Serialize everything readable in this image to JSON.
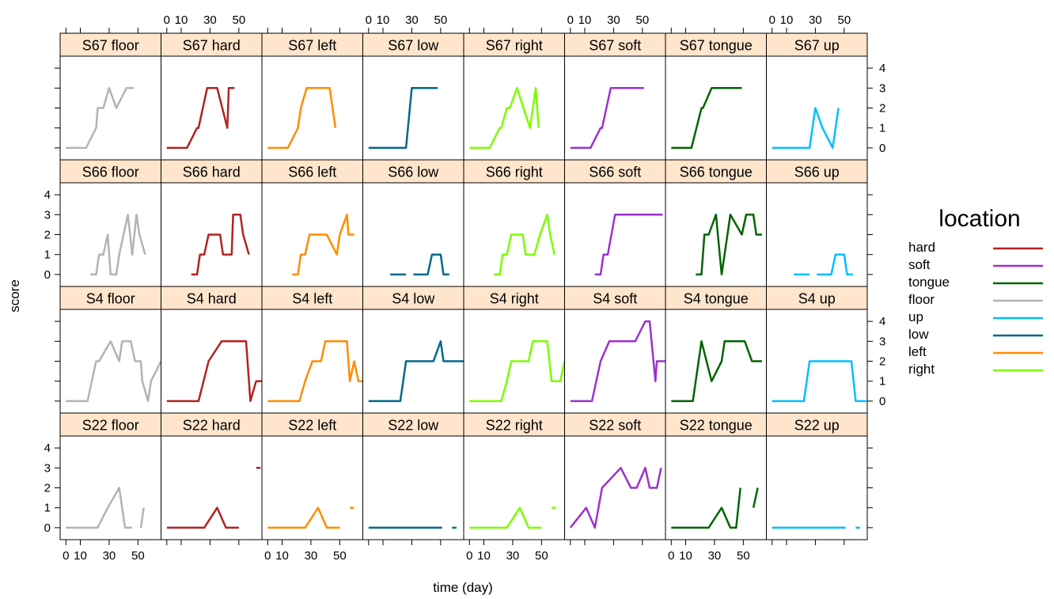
{
  "chart_data": {
    "type": "line",
    "xlabel": "time (day)",
    "ylabel": "score",
    "xlim": [
      -4,
      66
    ],
    "ylim": [
      -0.6,
      4.6
    ],
    "x_ticks": [
      0,
      10,
      30,
      50
    ],
    "y_ticks": [
      0,
      1,
      2,
      3,
      4
    ],
    "colors": {
      "hard": "#b22222",
      "soft": "#9a32cd",
      "tongue": "#006400",
      "floor": "#b3b3b3",
      "up": "#00bfff",
      "low": "#00688b",
      "left": "#ff8c00",
      "right": "#7cfc00"
    },
    "legend": {
      "title": "location",
      "entries": [
        "hard",
        "soft",
        "tongue",
        "floor",
        "up",
        "low",
        "left",
        "right"
      ]
    },
    "subjects": [
      "S67",
      "S66",
      "S4",
      "S22"
    ],
    "locations": [
      "floor",
      "hard",
      "left",
      "low",
      "right",
      "soft",
      "tongue",
      "up"
    ],
    "panels": {
      "S67": {
        "floor": [
          [
            0,
            0
          ],
          [
            14,
            0
          ],
          [
            21,
            1
          ],
          [
            22,
            2
          ],
          [
            26,
            2
          ],
          [
            30,
            3
          ],
          [
            35,
            2
          ],
          [
            42,
            3
          ],
          [
            47,
            3
          ]
        ],
        "hard": [
          [
            0,
            0
          ],
          [
            14,
            0
          ],
          [
            21,
            1
          ],
          [
            22,
            1
          ],
          [
            28,
            3
          ],
          [
            35,
            3
          ],
          [
            42,
            1
          ],
          [
            43,
            3
          ],
          [
            47,
            3
          ]
        ],
        "left": [
          [
            0,
            0
          ],
          [
            14,
            0
          ],
          [
            21,
            1
          ],
          [
            23,
            2
          ],
          [
            27,
            3
          ],
          [
            43,
            3
          ],
          [
            47,
            1
          ]
        ],
        "low": [
          [
            0,
            0
          ],
          [
            26,
            0
          ],
          [
            30,
            3
          ],
          [
            48,
            3
          ]
        ],
        "right": [
          [
            0,
            0
          ],
          [
            14,
            0
          ],
          [
            21,
            1
          ],
          [
            22,
            1
          ],
          [
            26,
            2
          ],
          [
            28,
            2
          ],
          [
            33,
            3
          ],
          [
            42,
            1
          ],
          [
            46,
            3
          ],
          [
            48,
            1
          ]
        ],
        "soft": [
          [
            0,
            0
          ],
          [
            14,
            0
          ],
          [
            21,
            1
          ],
          [
            22,
            1
          ],
          [
            28,
            3
          ],
          [
            51,
            3
          ]
        ],
        "tongue": [
          [
            0,
            0
          ],
          [
            14,
            0
          ],
          [
            21,
            2
          ],
          [
            22,
            2
          ],
          [
            28,
            3
          ],
          [
            49,
            3
          ]
        ],
        "up": [
          [
            0,
            0
          ],
          [
            26,
            0
          ],
          [
            30,
            2
          ],
          [
            35,
            1
          ],
          [
            42,
            0
          ],
          [
            46,
            2
          ]
        ]
      },
      "S66": {
        "floor": [
          [
            17,
            0
          ],
          [
            21,
            0
          ],
          [
            23,
            1
          ],
          [
            26,
            1
          ],
          [
            29,
            2
          ],
          [
            31,
            0
          ],
          [
            35,
            0
          ],
          [
            37,
            1
          ],
          [
            43,
            3
          ],
          [
            46,
            1
          ],
          [
            49,
            3
          ],
          [
            51,
            2
          ],
          [
            55,
            1
          ]
        ],
        "hard": [
          [
            17,
            0
          ],
          [
            21,
            0
          ],
          [
            23,
            1
          ],
          [
            26,
            1
          ],
          [
            29,
            2
          ],
          [
            37,
            2
          ],
          [
            39,
            1
          ],
          [
            45,
            1
          ],
          [
            46,
            3
          ],
          [
            51,
            3
          ],
          [
            53,
            2
          ],
          [
            57,
            1
          ]
        ],
        "left": [
          [
            17,
            0
          ],
          [
            21,
            0
          ],
          [
            23,
            1
          ],
          [
            26,
            1
          ],
          [
            29,
            2
          ],
          [
            41,
            2
          ],
          [
            48,
            1
          ],
          [
            50,
            2
          ],
          [
            55,
            3
          ],
          [
            56,
            2
          ],
          [
            60,
            2
          ]
        ],
        "low": [
          [
            15,
            0
          ],
          [
            26,
            0
          ],
          [
            null,
            null
          ],
          [
            31,
            0
          ],
          [
            41,
            0
          ],
          [
            44,
            1
          ],
          [
            50,
            1
          ],
          [
            52,
            0
          ],
          [
            56,
            0
          ]
        ],
        "right": [
          [
            17,
            0
          ],
          [
            21,
            0
          ],
          [
            23,
            1
          ],
          [
            26,
            1
          ],
          [
            29,
            2
          ],
          [
            37,
            2
          ],
          [
            39,
            1
          ],
          [
            45,
            1
          ],
          [
            49,
            2
          ],
          [
            54,
            3
          ],
          [
            56,
            2
          ],
          [
            59,
            1
          ]
        ],
        "soft": [
          [
            17,
            0
          ],
          [
            21,
            0
          ],
          [
            23,
            1
          ],
          [
            26,
            1
          ],
          [
            31,
            3
          ],
          [
            64,
            3
          ]
        ],
        "tongue": [
          [
            17,
            0
          ],
          [
            21,
            0
          ],
          [
            23,
            2
          ],
          [
            26,
            2
          ],
          [
            31,
            3
          ],
          [
            35,
            0
          ],
          [
            41,
            3
          ],
          [
            49,
            2
          ],
          [
            52,
            3
          ],
          [
            57,
            3
          ],
          [
            59,
            2
          ],
          [
            63,
            2
          ]
        ],
        "up": [
          [
            15,
            0
          ],
          [
            26,
            0
          ],
          [
            null,
            null
          ],
          [
            31,
            0
          ],
          [
            41,
            0
          ],
          [
            44,
            1
          ],
          [
            50,
            1
          ],
          [
            52,
            0
          ],
          [
            56,
            0
          ]
        ]
      },
      "S4": {
        "floor": [
          [
            0,
            0
          ],
          [
            15,
            0
          ],
          [
            21,
            2
          ],
          [
            23,
            2
          ],
          [
            31,
            3
          ],
          [
            37,
            2
          ],
          [
            39,
            3
          ],
          [
            45,
            3
          ],
          [
            48,
            2
          ],
          [
            52,
            2
          ],
          [
            53,
            1
          ],
          [
            57,
            0
          ],
          [
            59,
            1
          ],
          [
            66,
            2
          ]
        ],
        "hard": [
          [
            0,
            0
          ],
          [
            22,
            0
          ],
          [
            29,
            2
          ],
          [
            38,
            3
          ],
          [
            55,
            3
          ],
          [
            58,
            0
          ],
          [
            62,
            1
          ],
          [
            66,
            1
          ]
        ],
        "left": [
          [
            0,
            0
          ],
          [
            22,
            0
          ],
          [
            26,
            1
          ],
          [
            31,
            2
          ],
          [
            37,
            2
          ],
          [
            40,
            3
          ],
          [
            55,
            3
          ],
          [
            57,
            1
          ],
          [
            60,
            2
          ],
          [
            63,
            1
          ],
          [
            66,
            1
          ]
        ],
        "low": [
          [
            0,
            0
          ],
          [
            22,
            0
          ],
          [
            26,
            2
          ],
          [
            40,
            2
          ],
          [
            45,
            2
          ],
          [
            50,
            3
          ],
          [
            52,
            2
          ],
          [
            66,
            2
          ]
        ],
        "right": [
          [
            0,
            0
          ],
          [
            22,
            0
          ],
          [
            26,
            1
          ],
          [
            29,
            2
          ],
          [
            41,
            2
          ],
          [
            44,
            3
          ],
          [
            54,
            3
          ],
          [
            57,
            1
          ],
          [
            63,
            1
          ],
          [
            66,
            2
          ]
        ],
        "soft": [
          [
            0,
            0
          ],
          [
            15,
            0
          ],
          [
            21,
            2
          ],
          [
            27,
            3
          ],
          [
            45,
            3
          ],
          [
            52,
            4
          ],
          [
            55,
            4
          ],
          [
            59,
            1
          ],
          [
            60,
            2
          ],
          [
            66,
            2
          ]
        ],
        "tongue": [
          [
            0,
            0
          ],
          [
            15,
            0
          ],
          [
            21,
            3
          ],
          [
            28,
            1
          ],
          [
            35,
            2
          ],
          [
            37,
            3
          ],
          [
            51,
            3
          ],
          [
            56,
            2
          ],
          [
            63,
            2
          ]
        ],
        "up": [
          [
            0,
            0
          ],
          [
            22,
            0
          ],
          [
            26,
            2
          ],
          [
            55,
            2
          ],
          [
            58,
            0
          ],
          [
            66,
            0
          ]
        ]
      },
      "S22": {
        "floor": [
          [
            0,
            0
          ],
          [
            22,
            0
          ],
          [
            29,
            1
          ],
          [
            37,
            2
          ],
          [
            41,
            0
          ],
          [
            46,
            0
          ],
          [
            null,
            null
          ],
          [
            52,
            0
          ],
          [
            54,
            1
          ]
        ],
        "hard": [
          [
            0,
            0
          ],
          [
            26,
            0
          ],
          [
            35,
            1
          ],
          [
            41,
            0
          ],
          [
            50,
            0
          ],
          [
            null,
            null
          ],
          [
            62,
            3
          ],
          [
            65,
            3
          ]
        ],
        "left": [
          [
            0,
            0
          ],
          [
            26,
            0
          ],
          [
            35,
            1
          ],
          [
            41,
            0
          ],
          [
            50,
            0
          ],
          [
            null,
            null
          ],
          [
            57,
            1
          ],
          [
            60,
            1
          ]
        ],
        "low": [
          [
            0,
            0
          ],
          [
            51,
            0
          ],
          [
            null,
            null
          ],
          [
            58,
            0
          ],
          [
            61,
            0
          ]
        ],
        "right": [
          [
            0,
            0
          ],
          [
            26,
            0
          ],
          [
            35,
            1
          ],
          [
            41,
            0
          ],
          [
            50,
            0
          ],
          [
            null,
            null
          ],
          [
            57,
            1
          ],
          [
            60,
            1
          ]
        ],
        "soft": [
          [
            0,
            0
          ],
          [
            11,
            1
          ],
          [
            17,
            0
          ],
          [
            22,
            2
          ],
          [
            35,
            3
          ],
          [
            42,
            2
          ],
          [
            46,
            2
          ],
          [
            52,
            3
          ],
          [
            55,
            2
          ],
          [
            60,
            2
          ],
          [
            63,
            3
          ]
        ],
        "tongue": [
          [
            0,
            0
          ],
          [
            26,
            0
          ],
          [
            35,
            1
          ],
          [
            41,
            0
          ],
          [
            45,
            0
          ],
          [
            48,
            2
          ],
          [
            null,
            null
          ],
          [
            57,
            1
          ],
          [
            60,
            2
          ]
        ],
        "up": [
          [
            0,
            0
          ],
          [
            51,
            0
          ],
          [
            null,
            null
          ],
          [
            58,
            0
          ],
          [
            61,
            0
          ]
        ]
      }
    }
  }
}
